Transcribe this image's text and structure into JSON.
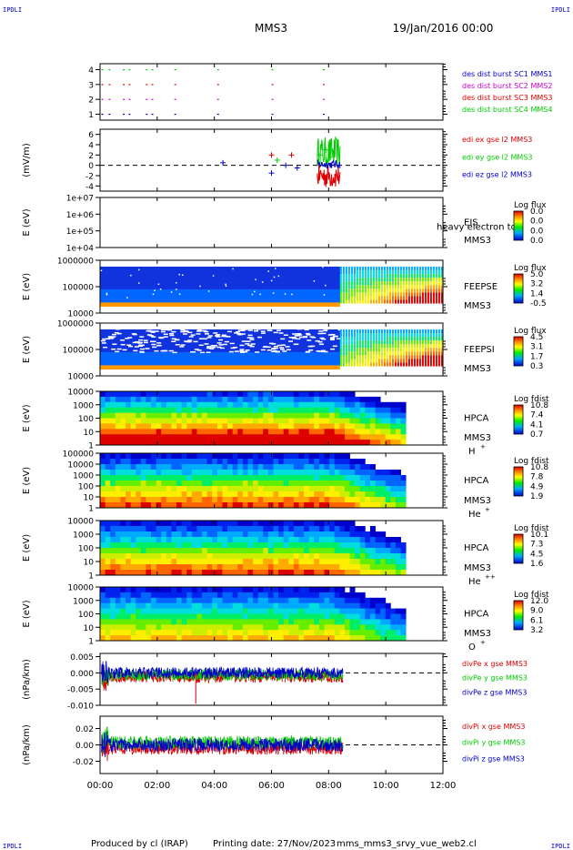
{
  "header": {
    "corner_left_top": "IPDLI",
    "corner_right_top": "IPDLI",
    "spacecraft": "MMS3",
    "date": "19/Jan/2016 00:00",
    "corner_left_bottom": "IPDLI",
    "corner_right_bottom": "IPDLI"
  },
  "footer": {
    "produced_by": "Produced by cl (IRAP)",
    "printing_date": "Printing date: 27/Nov/2023",
    "filename": "mms_mms3_srvy_vue_web2.cl"
  },
  "colors": {
    "black": "#000000",
    "blue": "#0000cc",
    "green": "#00cc00",
    "red": "#dd0000",
    "magenta": "#cc00cc",
    "orange": "#ff9900"
  },
  "chart_data": {
    "type": "multi-panel time series / spectrogram",
    "x_ticks": [
      "00:00",
      "02:00",
      "04:00",
      "06:00",
      "08:00",
      "10:00",
      "12:00"
    ],
    "xlim_hours": [
      0,
      12
    ],
    "panels": [
      {
        "id": "des-dist-burst",
        "type": "scatter",
        "ylabel": "",
        "y_ticks": [
          "1",
          "2",
          "3",
          "4"
        ],
        "ylim": [
          0.6,
          4.4
        ],
        "legend": [
          {
            "label": "des dist burst SC1 MMS1",
            "color": "#0000cc",
            "y": 1
          },
          {
            "label": "des dist burst SC2 MMS2",
            "color": "#cc00cc",
            "y": 2
          },
          {
            "label": "des dist burst SC3 MMS3",
            "color": "#dd0000",
            "y": 3
          },
          {
            "label": "des dist burst SC4 MMS4",
            "color": "#00cc00",
            "y": 4
          }
        ],
        "burst_hours": [
          0.05,
          0.3,
          0.8,
          1.0,
          1.6,
          1.8,
          2.6,
          4.1,
          6.0,
          7.8
        ]
      },
      {
        "id": "edi-e",
        "type": "line",
        "ylabel": "(mV/m)",
        "y_ticks": [
          "-4",
          "-2",
          "0",
          "2",
          "4",
          "6"
        ],
        "ylim": [
          -5,
          7
        ],
        "legend": [
          {
            "label": "edi ex gse l2 MMS3",
            "color": "#dd0000"
          },
          {
            "label": "edi ey gse l2 MMS3",
            "color": "#00cc00"
          },
          {
            "label": "edi ez gse l2 MMS3",
            "color": "#0000cc"
          }
        ]
      },
      {
        "id": "eis",
        "type": "heatmap",
        "ylabel": "E (eV)",
        "y_ticks": [
          "1e+04",
          "1e+05",
          "1e+06",
          "1e+07"
        ],
        "ylim": [
          "1e+04",
          "1e+07"
        ],
        "instrument": "EIS",
        "sublabel": "MMS3",
        "overlay_text": "heavy electron to",
        "colorbar": {
          "title": "Log flux",
          "ticks": [
            "0.0",
            "0.0",
            "0.0",
            "0.0"
          ]
        }
      },
      {
        "id": "feeps-e",
        "type": "heatmap",
        "ylabel": "E (eV)",
        "y_ticks": [
          "10000",
          "100000",
          "1000000"
        ],
        "instrument": "FEEPSE",
        "sublabel": "MMS3",
        "colorbar": {
          "title": "Log flux",
          "ticks": [
            "5.0",
            "3.2",
            "1.4",
            "-0.5"
          ]
        }
      },
      {
        "id": "feeps-i",
        "type": "heatmap",
        "ylabel": "E (eV)",
        "y_ticks": [
          "10000",
          "100000",
          "1000000"
        ],
        "instrument": "FEEPSI",
        "sublabel": "MMS3",
        "colorbar": {
          "title": "Log flux",
          "ticks": [
            "4.5",
            "3.1",
            "1.7",
            "0.3"
          ]
        }
      },
      {
        "id": "hpca-h",
        "type": "heatmap",
        "ylabel": "E (eV)",
        "y_ticks": [
          "1",
          "10",
          "100",
          "1000",
          "10000"
        ],
        "instrument": "HPCA",
        "sublabel": "MMS3",
        "species": "H",
        "species_sup": "+",
        "colorbar": {
          "title": "Log fdist",
          "ticks": [
            "10.8",
            "7.4",
            "4.1",
            "0.7"
          ]
        }
      },
      {
        "id": "hpca-he",
        "type": "heatmap",
        "ylabel": "E (eV)",
        "y_ticks": [
          "1",
          "10",
          "100",
          "1000",
          "10000",
          "100000"
        ],
        "instrument": "HPCA",
        "sublabel": "MMS3",
        "species": "He",
        "species_sup": "+",
        "colorbar": {
          "title": "Log fdist",
          "ticks": [
            "10.8",
            "7.8",
            "4.9",
            "1.9"
          ]
        }
      },
      {
        "id": "hpca-he2",
        "type": "heatmap",
        "ylabel": "E (eV)",
        "y_ticks": [
          "1",
          "10",
          "100",
          "1000",
          "10000"
        ],
        "instrument": "HPCA",
        "sublabel": "MMS3",
        "species": "He",
        "species_sup": "++",
        "colorbar": {
          "title": "Log fdist",
          "ticks": [
            "10.1",
            "7.3",
            "4.5",
            "1.6"
          ]
        }
      },
      {
        "id": "hpca-o",
        "type": "heatmap",
        "ylabel": "E (eV)",
        "y_ticks": [
          "1",
          "10",
          "100",
          "1000",
          "10000"
        ],
        "instrument": "HPCA",
        "sublabel": "MMS3",
        "species": "O",
        "species_sup": "+",
        "colorbar": {
          "title": "Log fdist",
          "ticks": [
            "12.0",
            "9.0",
            "6.1",
            "3.2"
          ]
        }
      },
      {
        "id": "divpe",
        "type": "line",
        "ylabel": "(nPa/km)",
        "y_ticks": [
          "-0.010",
          "-0.005",
          "0.000",
          "0.005"
        ],
        "ylim": [
          -0.01,
          0.006
        ],
        "legend": [
          {
            "label": "divPe x gse MMS3",
            "color": "#dd0000"
          },
          {
            "label": "divPe y gse MMS3",
            "color": "#00cc00"
          },
          {
            "label": "divPe z gse MMS3",
            "color": "#0000cc"
          }
        ]
      },
      {
        "id": "divpi",
        "type": "line",
        "ylabel": "(nPa/km)",
        "y_ticks": [
          "-0.02",
          "0.00",
          "0.02"
        ],
        "ylim": [
          -0.035,
          0.035
        ],
        "legend": [
          {
            "label": "divPi x gse MMS3",
            "color": "#dd0000"
          },
          {
            "label": "divPi y gse MMS3",
            "color": "#00cc00"
          },
          {
            "label": "divPi z gse MMS3",
            "color": "#0000cc"
          }
        ]
      }
    ]
  }
}
